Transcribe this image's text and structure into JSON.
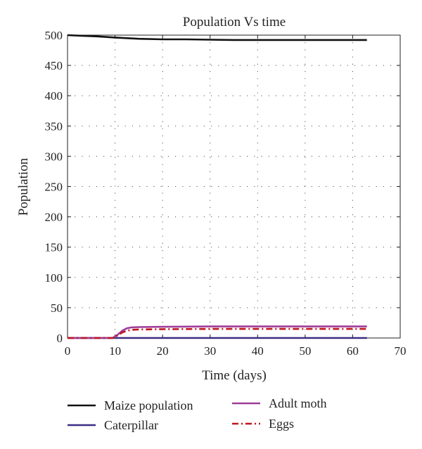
{
  "chart_data": {
    "type": "line",
    "title": "Population Vs time",
    "xlabel": "Time (days)",
    "ylabel": "Population",
    "xlim": [
      0,
      70
    ],
    "ylim": [
      0,
      500
    ],
    "x_ticks": [
      0,
      10,
      20,
      30,
      40,
      50,
      60,
      70
    ],
    "y_ticks": [
      0,
      50,
      100,
      150,
      200,
      250,
      300,
      350,
      400,
      450,
      500
    ],
    "grid": true,
    "legend_position": "bottom",
    "series": [
      {
        "name": "Maize population",
        "color": "#111111",
        "style": "solid",
        "x": [
          0,
          3,
          6,
          10,
          15,
          20,
          25,
          30,
          35,
          40,
          45,
          50,
          55,
          60,
          63
        ],
        "y": [
          500,
          499,
          498,
          496,
          494,
          493,
          493,
          492.5,
          492,
          492,
          492,
          492,
          492,
          492,
          492
        ]
      },
      {
        "name": "Caterpillar",
        "color": "#3d2b83",
        "style": "solid",
        "x": [
          0,
          10,
          20,
          30,
          40,
          50,
          60,
          63
        ],
        "y": [
          0,
          0,
          0,
          0,
          0,
          0,
          0,
          0
        ]
      },
      {
        "name": "Adult moth",
        "color": "#a03c9a",
        "style": "solid",
        "x": [
          0,
          9.5,
          10.5,
          11.5,
          12.5,
          13.5,
          15,
          20,
          30,
          40,
          50,
          60,
          63
        ],
        "y": [
          0,
          0,
          5,
          12,
          16,
          17.5,
          18,
          18.5,
          19,
          19,
          19,
          19,
          19
        ]
      },
      {
        "name": "Eggs",
        "color": "#c0141b",
        "style": "dashdot",
        "x": [
          0,
          9.5,
          10.5,
          11.5,
          12.5,
          13.5,
          15,
          20,
          30,
          40,
          50,
          60,
          63
        ],
        "y": [
          0,
          0,
          4,
          9,
          12,
          13.5,
          14,
          14.5,
          15,
          15,
          15,
          15,
          15
        ]
      }
    ]
  }
}
